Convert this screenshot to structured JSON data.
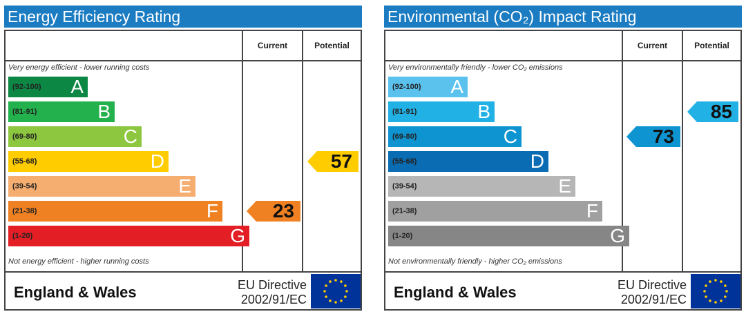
{
  "colors": {
    "title_bar": "#1b7cc2",
    "energy_bands": [
      "#0c8744",
      "#22b14c",
      "#8dc63f",
      "#ffcc00",
      "#f6ad70",
      "#f08122",
      "#e31e25"
    ],
    "env_bands": [
      "#5bc2ee",
      "#22b1e4",
      "#0f94d2",
      "#0a6db3",
      "#b6b6b6",
      "#a0a0a0",
      "#868686"
    ],
    "eu_flag": "#003399",
    "eu_stars": "#ffcc00"
  },
  "columns": {
    "current": "Current",
    "potential": "Potential"
  },
  "footer": {
    "region": "England & Wales",
    "directive_line1": "EU Directive",
    "directive_line2": "2002/91/EC"
  },
  "chart_data": [
    {
      "type": "bar",
      "title": "Energy Efficiency Rating",
      "top_note": "Very energy efficient - lower running costs",
      "bottom_note": "Not energy efficient - higher running costs",
      "bands": [
        {
          "range": "(92-100)",
          "letter": "A",
          "min": 92,
          "max": 100
        },
        {
          "range": "(81-91)",
          "letter": "B",
          "min": 81,
          "max": 91
        },
        {
          "range": "(69-80)",
          "letter": "C",
          "min": 69,
          "max": 80
        },
        {
          "range": "(55-68)",
          "letter": "D",
          "min": 55,
          "max": 68
        },
        {
          "range": "(39-54)",
          "letter": "E",
          "min": 39,
          "max": 54
        },
        {
          "range": "(21-38)",
          "letter": "F",
          "min": 21,
          "max": 38
        },
        {
          "range": "(1-20)",
          "letter": "G",
          "min": 1,
          "max": 20
        }
      ],
      "current": {
        "value": 23,
        "band": "F",
        "color": "#f08122"
      },
      "potential": {
        "value": 57,
        "band": "D",
        "color": "#ffcc00"
      }
    },
    {
      "type": "bar",
      "title": "Environmental (CO₂) Impact Rating",
      "top_note": "Very environmentally friendly - lower CO₂ emissions",
      "bottom_note": "Not environmentally friendly - higher CO₂ emissions",
      "bands": [
        {
          "range": "(92-100)",
          "letter": "A",
          "min": 92,
          "max": 100
        },
        {
          "range": "(81-91)",
          "letter": "B",
          "min": 81,
          "max": 91
        },
        {
          "range": "(69-80)",
          "letter": "C",
          "min": 69,
          "max": 80
        },
        {
          "range": "(55-68)",
          "letter": "D",
          "min": 55,
          "max": 68
        },
        {
          "range": "(39-54)",
          "letter": "E",
          "min": 39,
          "max": 54
        },
        {
          "range": "(21-38)",
          "letter": "F",
          "min": 21,
          "max": 38
        },
        {
          "range": "(1-20)",
          "letter": "G",
          "min": 1,
          "max": 20
        }
      ],
      "current": {
        "value": 73,
        "band": "C",
        "color": "#0f94d2"
      },
      "potential": {
        "value": 85,
        "band": "B",
        "color": "#22b1e4"
      }
    }
  ]
}
